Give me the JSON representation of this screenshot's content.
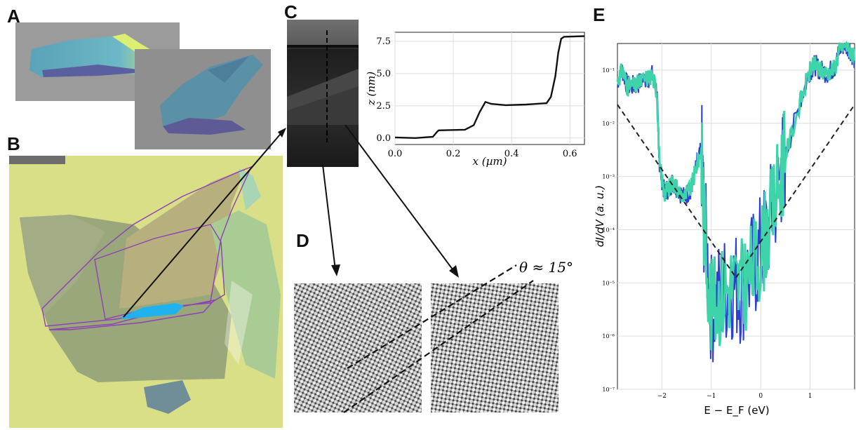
{
  "panels": {
    "a": "A",
    "b": "B",
    "c": "C",
    "d": "D",
    "e": "E"
  },
  "panel_d": {
    "angle_label": "θ ≈ 15°"
  },
  "colors": {
    "substrate_yellow": "#d9df86",
    "flake_green": "#9aa77a",
    "outline_purple": "#8e3fb8",
    "highlight_blue": "#1fb2ee",
    "stm_trace_teal": "#3fd3a9",
    "stm_trace_blue": "#2d3fd0"
  },
  "chart_data": [
    {
      "type": "line",
      "panel": "C",
      "title": "",
      "xlabel": "x (µm)",
      "ylabel": "z (nm)",
      "xlim": [
        0,
        0.65
      ],
      "ylim": [
        -0.5,
        8.2
      ],
      "grid": true,
      "xticks": [
        "0.0",
        "0.2",
        "0.4",
        "0.6"
      ],
      "yticks": [
        "0.0",
        "2.5",
        "5.0",
        "7.5"
      ],
      "x": [
        0.0,
        0.07,
        0.13,
        0.145,
        0.15,
        0.24,
        0.27,
        0.29,
        0.31,
        0.33,
        0.38,
        0.45,
        0.52,
        0.535,
        0.55,
        0.56,
        0.57,
        0.58,
        0.65
      ],
      "y": [
        0.05,
        0.0,
        0.1,
        0.5,
        0.6,
        0.65,
        1.0,
        2.0,
        2.8,
        2.65,
        2.55,
        2.6,
        2.7,
        3.2,
        4.8,
        6.6,
        7.7,
        7.85,
        7.9
      ]
    },
    {
      "type": "line",
      "panel": "E",
      "title": "",
      "xlabel": "E − E_F (eV)",
      "ylabel": "dI/dV (a. u.)",
      "xlim": [
        -2.9,
        1.9
      ],
      "ylim_log10": [
        -7,
        -0.5
      ],
      "yscale": "log",
      "grid": true,
      "xticks": [
        "−2",
        "−1",
        "0",
        "1"
      ],
      "yticks": [
        "10⁻⁷",
        "10⁻⁶",
        "10⁻⁵",
        "10⁻⁴",
        "10⁻³",
        "10⁻²",
        "10⁻¹"
      ],
      "series": [
        {
          "x": [
            -2.9,
            -2.8,
            -2.7,
            -2.55,
            -2.4,
            -2.2,
            -2.1,
            -2.05,
            -1.95,
            -1.85,
            -1.78,
            -1.7,
            -1.55,
            -1.4,
            -1.3,
            -1.2,
            -1.15,
            -1.0,
            -0.8,
            -0.6,
            -0.4,
            -0.2,
            0.0,
            0.2,
            0.4,
            0.5,
            0.8,
            1.0,
            1.1,
            1.2,
            1.35,
            1.5,
            1.6,
            1.7,
            1.8,
            1.9
          ],
          "log10_y": [
            -1.2,
            -1.0,
            -1.3,
            -1.3,
            -1.2,
            -1.1,
            -1.4,
            -2.8,
            -3.3,
            -3.2,
            -3.1,
            -3.2,
            -3.4,
            -3.2,
            -2.8,
            -2.5,
            -3.8,
            -5.5,
            -5.2,
            -5.0,
            -5.1,
            -4.8,
            -4.4,
            -3.8,
            -3.0,
            -2.6,
            -1.6,
            -1.0,
            -0.9,
            -1.0,
            -1.05,
            -0.95,
            -0.6,
            -0.5,
            -0.6,
            -0.8
          ]
        }
      ],
      "guide_lines": [
        {
          "x": [
            -2.9,
            -0.5
          ],
          "log10_y": [
            -1.65,
            -4.9
          ]
        },
        {
          "x": [
            -0.5,
            1.9
          ],
          "log10_y": [
            -4.9,
            -1.65
          ]
        }
      ]
    }
  ]
}
